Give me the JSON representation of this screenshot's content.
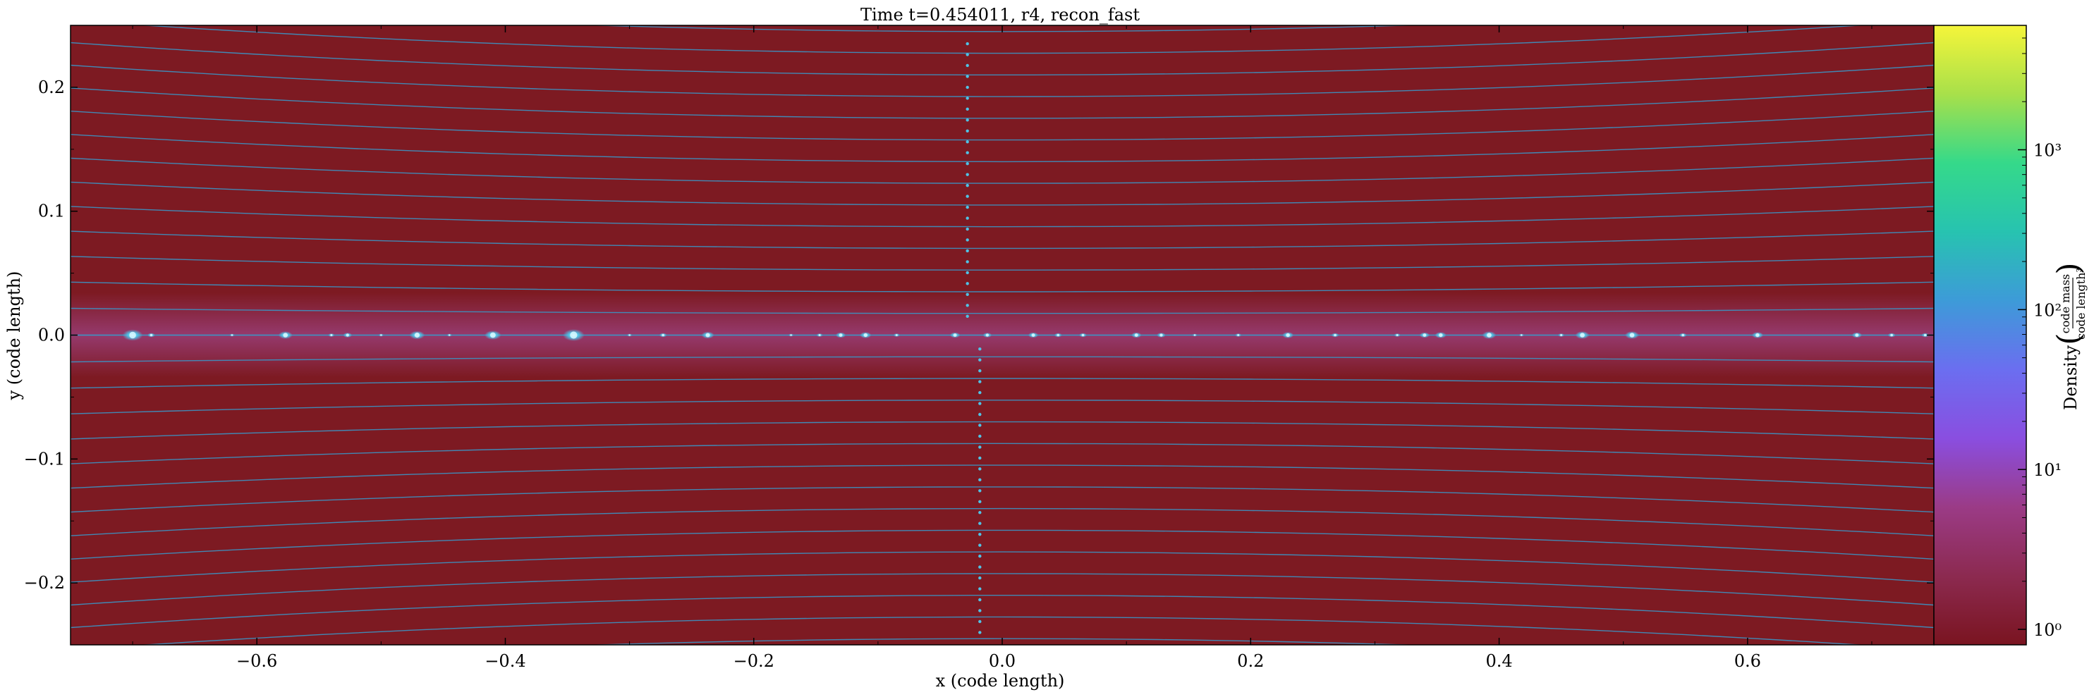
{
  "title": "Time t=0.454011, r4, recon_fast",
  "colors": {
    "background_field": "#7d1a22",
    "midplane_glow": "#9a3f7a",
    "streamline": "#3b95c4",
    "clump": "#4fc3e6",
    "colormap": [
      "#7a1420",
      "#8c2a50",
      "#9b3b86",
      "#8a4ee0",
      "#6b6ef0",
      "#3d9bd8",
      "#27c3b0",
      "#35d98a",
      "#a8e04a",
      "#f5f53a"
    ]
  },
  "chart_data": {
    "type": "heatmap",
    "title": "Time t=0.454011, r4, recon_fast",
    "xlabel": "x  (code length)",
    "ylabel": "y  (code length)",
    "xlim": [
      -0.75,
      0.75
    ],
    "ylim": [
      -0.25,
      0.25
    ],
    "xticks": [
      -0.6,
      -0.4,
      -0.2,
      0.0,
      0.2,
      0.4,
      0.6
    ],
    "xtick_labels": [
      "−0.6",
      "−0.4",
      "−0.2",
      "0.0",
      "0.2",
      "0.4",
      "0.6"
    ],
    "yticks": [
      0.2,
      0.1,
      0.0,
      -0.1,
      -0.2
    ],
    "ytick_labels": [
      "0.2",
      "0.1",
      "0.0",
      "−0.1",
      "−0.2"
    ],
    "colorbar": {
      "label": "Density",
      "unit_numerator": "code mass",
      "unit_denominator": "code length³",
      "scale": "log",
      "range": [
        0.8,
        6000
      ],
      "ticks": [
        1,
        10,
        100,
        1000
      ],
      "tick_labels": [
        "10⁰",
        "10¹",
        "10²",
        "10³"
      ]
    },
    "streamlines": {
      "y_spacing": 0.0175,
      "y_range": [
        -0.245,
        0.245
      ]
    },
    "clumps": [
      {
        "x": -0.7,
        "y": 0.0,
        "size": 1.6
      },
      {
        "x": -0.685,
        "y": 0.0,
        "size": 0.6
      },
      {
        "x": -0.62,
        "y": 0.0,
        "size": 0.4
      },
      {
        "x": -0.577,
        "y": 0.0,
        "size": 1.1
      },
      {
        "x": -0.54,
        "y": 0.0,
        "size": 0.5
      },
      {
        "x": -0.527,
        "y": 0.0,
        "size": 0.7
      },
      {
        "x": -0.5,
        "y": 0.0,
        "size": 0.4
      },
      {
        "x": -0.471,
        "y": 0.0,
        "size": 1.2
      },
      {
        "x": -0.445,
        "y": 0.0,
        "size": 0.4
      },
      {
        "x": -0.41,
        "y": 0.0,
        "size": 1.3
      },
      {
        "x": -0.345,
        "y": 0.0,
        "size": 1.7
      },
      {
        "x": -0.3,
        "y": 0.0,
        "size": 0.4
      },
      {
        "x": -0.273,
        "y": 0.0,
        "size": 0.6
      },
      {
        "x": -0.237,
        "y": 0.0,
        "size": 1.0
      },
      {
        "x": -0.17,
        "y": 0.0,
        "size": 0.4
      },
      {
        "x": -0.147,
        "y": 0.0,
        "size": 0.5
      },
      {
        "x": -0.13,
        "y": 0.0,
        "size": 0.8
      },
      {
        "x": -0.11,
        "y": 0.0,
        "size": 0.9
      },
      {
        "x": -0.085,
        "y": 0.0,
        "size": 0.5
      },
      {
        "x": -0.038,
        "y": 0.0,
        "size": 0.8
      },
      {
        "x": -0.012,
        "y": 0.0,
        "size": 0.7
      },
      {
        "x": 0.025,
        "y": 0.0,
        "size": 0.8
      },
      {
        "x": 0.045,
        "y": 0.0,
        "size": 0.6
      },
      {
        "x": 0.065,
        "y": 0.0,
        "size": 0.6
      },
      {
        "x": 0.108,
        "y": 0.0,
        "size": 0.8
      },
      {
        "x": 0.128,
        "y": 0.0,
        "size": 0.7
      },
      {
        "x": 0.155,
        "y": 0.0,
        "size": 0.4
      },
      {
        "x": 0.19,
        "y": 0.0,
        "size": 0.5
      },
      {
        "x": 0.23,
        "y": 0.0,
        "size": 0.9
      },
      {
        "x": 0.268,
        "y": 0.0,
        "size": 0.6
      },
      {
        "x": 0.318,
        "y": 0.0,
        "size": 0.5
      },
      {
        "x": 0.34,
        "y": 0.0,
        "size": 0.8
      },
      {
        "x": 0.353,
        "y": 0.0,
        "size": 0.9
      },
      {
        "x": 0.392,
        "y": 0.0,
        "size": 1.1
      },
      {
        "x": 0.418,
        "y": 0.0,
        "size": 0.4
      },
      {
        "x": 0.45,
        "y": 0.0,
        "size": 0.5
      },
      {
        "x": 0.467,
        "y": 0.0,
        "size": 1.1
      },
      {
        "x": 0.507,
        "y": 0.0,
        "size": 1.1
      },
      {
        "x": 0.548,
        "y": 0.0,
        "size": 0.6
      },
      {
        "x": 0.608,
        "y": 0.0,
        "size": 0.9
      },
      {
        "x": 0.688,
        "y": 0.0,
        "size": 0.8
      },
      {
        "x": 0.716,
        "y": 0.0,
        "size": 0.6
      },
      {
        "x": 0.743,
        "y": 0.0,
        "size": 0.6
      }
    ]
  }
}
